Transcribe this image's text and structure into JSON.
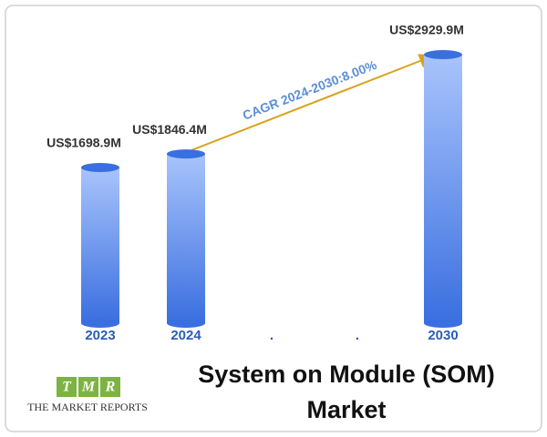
{
  "chart_data": {
    "type": "bar",
    "categories": [
      "2023",
      "2024",
      ".",
      ".",
      "2030"
    ],
    "values": [
      1698.9,
      1846.4,
      null,
      null,
      2929.9
    ],
    "value_labels": [
      "US$1698.9M",
      "US$1846.4M",
      null,
      null,
      "US$2929.9M"
    ],
    "color": "#3a6fe0",
    "annotation": "CAGR 2024-2030:8.00%",
    "title": "System on Module (SOM) Market"
  },
  "logo": {
    "letters": [
      "T",
      "M",
      "R"
    ],
    "text": "THE MARKET REPORTS"
  }
}
